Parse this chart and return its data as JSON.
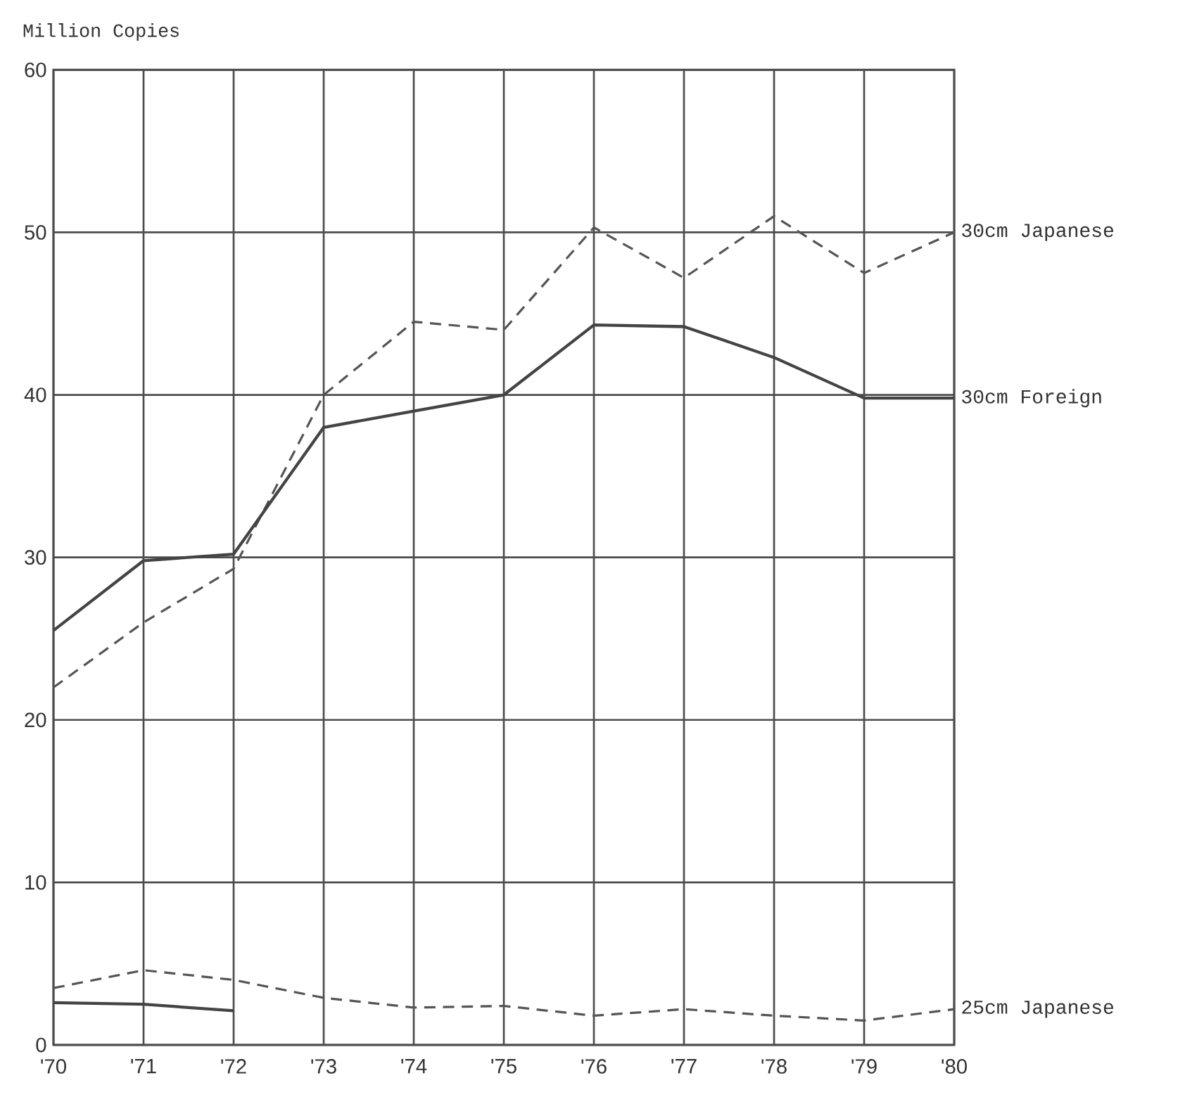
{
  "chart_data": {
    "type": "line",
    "ylabel": "Million Copies",
    "categories": [
      "'70",
      "'71",
      "'72",
      "'73",
      "'74",
      "'75",
      "'76",
      "'77",
      "'78",
      "'79",
      "'80"
    ],
    "ylim": [
      0,
      60
    ],
    "yticks": [
      0,
      10,
      20,
      30,
      40,
      50,
      60
    ],
    "grid": true,
    "legend": false,
    "marker": "none",
    "series": [
      {
        "name": "30cm Japanese",
        "color": "#555555",
        "line_style": "dashed",
        "values": [
          22,
          26,
          29.3,
          40,
          44.5,
          44,
          50.3,
          47.2,
          51,
          47.5,
          50
        ]
      },
      {
        "name": "30cm Foreign",
        "color": "#444444",
        "line_style": "solid",
        "values": [
          25.5,
          29.8,
          30.2,
          38,
          39,
          40,
          44.3,
          44.2,
          42.3,
          39.8,
          39.8
        ]
      },
      {
        "name": "25cm Japanese",
        "color": "#555555",
        "line_style": "dashed",
        "values": [
          3.5,
          4.6,
          4.0,
          2.9,
          2.3,
          2.4,
          1.8,
          2.2,
          1.8,
          1.5,
          2.2
        ]
      },
      {
        "color": "#444444",
        "line_style": "solid",
        "values": [
          2.6,
          2.5,
          2.1,
          null,
          null,
          null,
          null,
          null,
          null,
          null,
          null
        ]
      }
    ]
  }
}
